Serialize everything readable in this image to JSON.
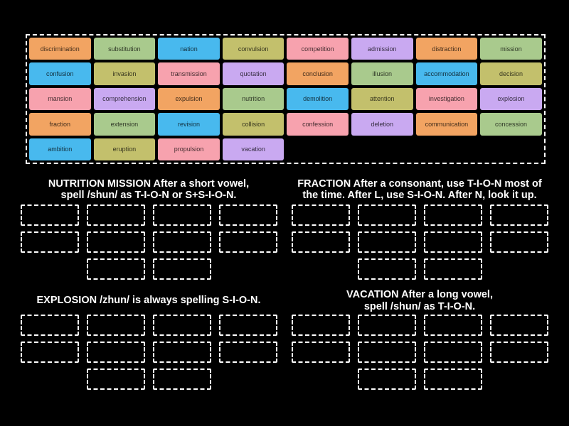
{
  "colors": {
    "background": "#000000",
    "tile_text": "rgba(0,0,0,0.74)",
    "border_dashed": "#ffffff",
    "palette": {
      "orange": "#F2A462",
      "green": "#A9CA8D",
      "blue": "#48B9EE",
      "olive": "#C3C06C",
      "pink": "#F7A2AE",
      "purple": "#C9A9F1"
    }
  },
  "word_bank": {
    "tiles": [
      {
        "label": "discrimination",
        "color": "orange"
      },
      {
        "label": "substitution",
        "color": "green"
      },
      {
        "label": "nation",
        "color": "blue"
      },
      {
        "label": "convulsion",
        "color": "olive"
      },
      {
        "label": "competition",
        "color": "pink"
      },
      {
        "label": "admission",
        "color": "purple"
      },
      {
        "label": "distraction",
        "color": "orange"
      },
      {
        "label": "mission",
        "color": "green"
      },
      {
        "label": "confusion",
        "color": "blue"
      },
      {
        "label": "invasion",
        "color": "olive"
      },
      {
        "label": "transmission",
        "color": "pink"
      },
      {
        "label": "quotation",
        "color": "purple"
      },
      {
        "label": "conclusion",
        "color": "orange"
      },
      {
        "label": "illusion",
        "color": "green"
      },
      {
        "label": "accommodation",
        "color": "blue"
      },
      {
        "label": "decision",
        "color": "olive"
      },
      {
        "label": "mansion",
        "color": "pink"
      },
      {
        "label": "comprehension",
        "color": "purple"
      },
      {
        "label": "expulsion",
        "color": "orange"
      },
      {
        "label": "nutrition",
        "color": "green"
      },
      {
        "label": "demolition",
        "color": "blue"
      },
      {
        "label": "attention",
        "color": "olive"
      },
      {
        "label": "investigation",
        "color": "pink"
      },
      {
        "label": "explosion",
        "color": "purple"
      },
      {
        "label": "fraction",
        "color": "orange"
      },
      {
        "label": "extension",
        "color": "green"
      },
      {
        "label": "revision",
        "color": "blue"
      },
      {
        "label": "collision",
        "color": "olive"
      },
      {
        "label": "confession",
        "color": "pink"
      },
      {
        "label": "deletion",
        "color": "purple"
      },
      {
        "label": "communication",
        "color": "orange"
      },
      {
        "label": "concession",
        "color": "green"
      },
      {
        "label": "ambition",
        "color": "blue"
      },
      {
        "label": "eruption",
        "color": "olive"
      },
      {
        "label": "propulsion",
        "color": "pink"
      },
      {
        "label": "vacation",
        "color": "purple"
      }
    ]
  },
  "categories": [
    {
      "id": "nutrition-mission",
      "header_lines": [
        "NUTRITION MISSION After a short vowel,",
        "spell /shun/ as T-I-O-N or S+S-I-O-N."
      ],
      "slot_rows": [
        4,
        4,
        2
      ]
    },
    {
      "id": "fraction",
      "header_lines": [
        "FRACTION After a consonant, use T-I-O-N most of",
        "the time. After L, use S-I-O-N. After N, look it up."
      ],
      "slot_rows": [
        4,
        4,
        2
      ]
    },
    {
      "id": "explosion",
      "header_lines": [
        "EXPLOSION /zhun/ is always spelling S-I-O-N."
      ],
      "slot_rows": [
        4,
        4,
        2
      ]
    },
    {
      "id": "vacation",
      "header_lines": [
        "VACATION After a long vowel,",
        "spell /shun/ as T-I-O-N."
      ],
      "slot_rows": [
        4,
        4,
        2
      ]
    }
  ]
}
